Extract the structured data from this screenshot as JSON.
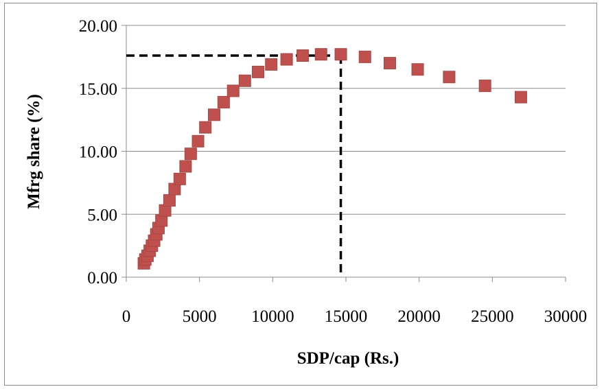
{
  "chart_data": {
    "type": "scatter",
    "title": "",
    "xlabel": "SDP/cap (Rs.)",
    "ylabel": "Mfrg share (%)",
    "xlim": [
      0,
      30000
    ],
    "ylim": [
      0,
      20
    ],
    "x_ticks": [
      "0",
      "5000",
      "10000",
      "15000",
      "20000",
      "25000",
      "30000"
    ],
    "y_ticks": [
      "0.00",
      "5.00",
      "10.00",
      "15.00",
      "20.00"
    ],
    "grid": "horizontal",
    "legend": "none",
    "marker_color": "#c0504d",
    "series": [
      {
        "x": [
          1200,
          1300,
          1450,
          1600,
          1750,
          1900,
          2050,
          2200,
          2400,
          2650,
          2950,
          3300,
          3650,
          4050,
          4400,
          4900,
          5400,
          6000,
          6650,
          7300,
          8100,
          9000,
          9900,
          10950,
          12050,
          13300,
          14650,
          16300,
          18000,
          19900,
          22050,
          24500,
          26950
        ],
        "y": [
          1.1,
          1.4,
          1.7,
          2.1,
          2.5,
          2.9,
          3.4,
          3.9,
          4.5,
          5.3,
          6.1,
          7.0,
          7.8,
          8.8,
          9.8,
          10.8,
          11.9,
          12.9,
          13.9,
          14.8,
          15.6,
          16.3,
          16.9,
          17.3,
          17.6,
          17.7,
          17.7,
          17.5,
          17.0,
          16.5,
          15.9,
          15.2,
          14.3
        ]
      }
    ],
    "reference_point": {
      "x": 14650,
      "y": 17.6
    }
  }
}
